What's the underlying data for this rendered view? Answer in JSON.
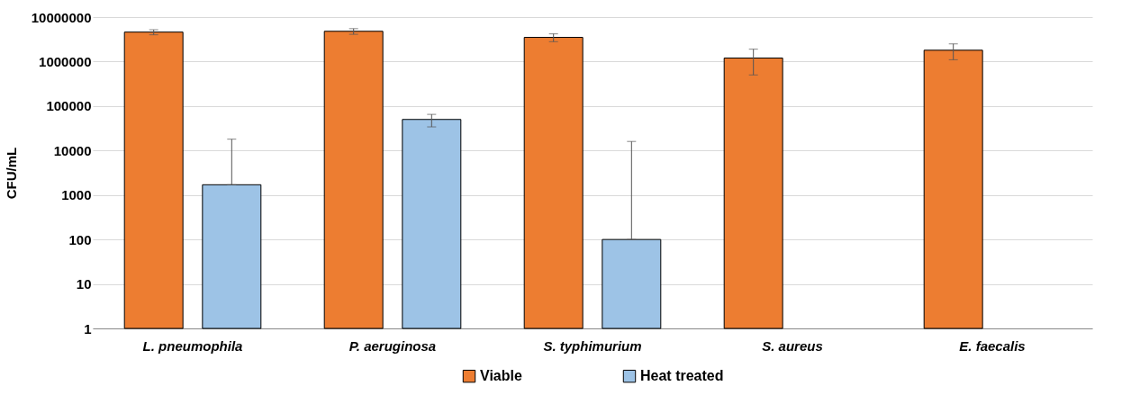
{
  "chart_data": {
    "type": "bar",
    "ylabel": "CFU/mL",
    "categories": [
      "L. pneumophila",
      "P. aeruginosa",
      "S. typhimurium",
      "S. aureus",
      "E. faecalis"
    ],
    "series": [
      {
        "name": "Viable",
        "color": "#ed7d31",
        "values": [
          4600000,
          4800000,
          3500000,
          1200000,
          1800000
        ],
        "errors": [
          [
            4000000,
            5200000
          ],
          [
            4100000,
            5500000
          ],
          [
            2800000,
            4200000
          ],
          [
            500000,
            1900000
          ],
          [
            1100000,
            2500000
          ]
        ]
      },
      {
        "name": "Heat treated",
        "color": "#9dc3e6",
        "values": [
          1700,
          50000,
          100,
          null,
          null
        ],
        "errors": [
          [
            1700,
            18000
          ],
          [
            34000,
            65000
          ],
          [
            100,
            16000
          ],
          null,
          null
        ]
      }
    ],
    "log": true,
    "ylim": [
      1,
      10000000
    ],
    "yticks": [
      1,
      10,
      100,
      1000,
      10000,
      100000,
      1000000,
      10000000
    ],
    "grid": "y",
    "legend": "bottom"
  }
}
